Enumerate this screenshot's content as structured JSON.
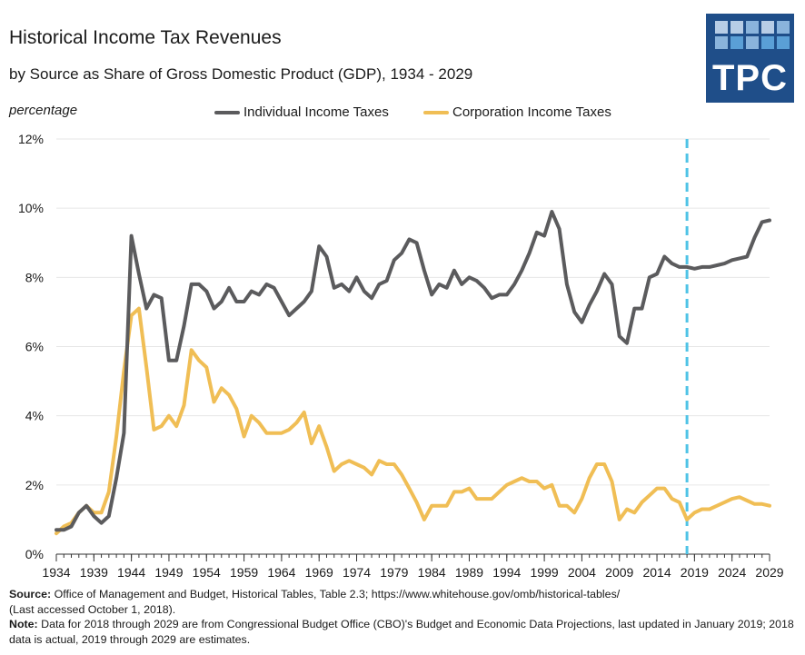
{
  "header": {
    "title": "Historical Income Tax Revenues",
    "subtitle": "by Source as Share of Gross Domestic Product (GDP), 1934 - 2029",
    "unit_label": "percentage"
  },
  "logo": {
    "text": "TPC",
    "bg_color": "#1f4e89",
    "cell_colors": [
      "#b7cde6",
      "#8ab4dc",
      "#5a9fd6"
    ]
  },
  "colors": {
    "individual": "#5b5b5d",
    "corporate": "#f0be55",
    "projection_line": "#4fc3e6",
    "grid": "#e6e6e6"
  },
  "chart_data": {
    "type": "line",
    "xlabel": "",
    "ylabel": "percentage",
    "xlim": [
      1934,
      2029
    ],
    "ylim": [
      0,
      12
    ],
    "grid": true,
    "legend_position": "top",
    "projection_start_year": 2018,
    "x_ticks": [
      1934,
      1939,
      1944,
      1949,
      1954,
      1959,
      1964,
      1969,
      1974,
      1979,
      1984,
      1989,
      1994,
      1999,
      2004,
      2009,
      2014,
      2019,
      2024,
      2029
    ],
    "y_ticks": [
      "0%",
      "2%",
      "4%",
      "6%",
      "8%",
      "10%",
      "12%"
    ],
    "y_tick_values": [
      0,
      2,
      4,
      6,
      8,
      10,
      12
    ],
    "x": [
      1934,
      1935,
      1936,
      1937,
      1938,
      1939,
      1940,
      1941,
      1942,
      1943,
      1944,
      1945,
      1946,
      1947,
      1948,
      1949,
      1950,
      1951,
      1952,
      1953,
      1954,
      1955,
      1956,
      1957,
      1958,
      1959,
      1960,
      1961,
      1962,
      1963,
      1964,
      1965,
      1966,
      1967,
      1968,
      1969,
      1970,
      1971,
      1972,
      1973,
      1974,
      1975,
      1976,
      1977,
      1978,
      1979,
      1980,
      1981,
      1982,
      1983,
      1984,
      1985,
      1986,
      1987,
      1988,
      1989,
      1990,
      1991,
      1992,
      1993,
      1994,
      1995,
      1996,
      1997,
      1998,
      1999,
      2000,
      2001,
      2002,
      2003,
      2004,
      2005,
      2006,
      2007,
      2008,
      2009,
      2010,
      2011,
      2012,
      2013,
      2014,
      2015,
      2016,
      2017,
      2018,
      2019,
      2020,
      2021,
      2022,
      2023,
      2024,
      2025,
      2026,
      2027,
      2028,
      2029
    ],
    "series": [
      {
        "name": "Individual Income Taxes",
        "color": "#5b5b5d",
        "values": [
          0.7,
          0.7,
          0.8,
          1.2,
          1.4,
          1.1,
          0.9,
          1.1,
          2.2,
          3.5,
          9.2,
          8.1,
          7.1,
          7.5,
          7.4,
          5.6,
          5.6,
          6.6,
          7.8,
          7.8,
          7.6,
          7.1,
          7.3,
          7.7,
          7.3,
          7.3,
          7.6,
          7.5,
          7.8,
          7.7,
          7.3,
          6.9,
          7.1,
          7.3,
          7.6,
          8.9,
          8.6,
          7.7,
          7.8,
          7.6,
          8.0,
          7.6,
          7.4,
          7.8,
          7.9,
          8.5,
          8.7,
          9.1,
          9.0,
          8.2,
          7.5,
          7.8,
          7.7,
          8.2,
          7.8,
          8.0,
          7.9,
          7.7,
          7.4,
          7.5,
          7.5,
          7.8,
          8.2,
          8.7,
          9.3,
          9.2,
          9.9,
          9.4,
          7.8,
          7.0,
          6.7,
          7.2,
          7.6,
          8.1,
          7.8,
          6.3,
          6.1,
          7.1,
          7.1,
          8.0,
          8.1,
          8.6,
          8.4,
          8.3,
          8.3,
          8.25,
          8.3,
          8.3,
          8.35,
          8.4,
          8.5,
          8.55,
          8.6,
          9.15,
          9.6,
          9.65
        ]
      },
      {
        "name": "Corporation Income Taxes",
        "color": "#f0be55",
        "values": [
          0.6,
          0.8,
          0.9,
          1.2,
          1.4,
          1.2,
          1.2,
          1.8,
          3.4,
          5.3,
          6.9,
          7.1,
          5.4,
          3.6,
          3.7,
          4.0,
          3.7,
          4.3,
          5.9,
          5.6,
          5.4,
          4.4,
          4.8,
          4.6,
          4.2,
          3.4,
          4.0,
          3.8,
          3.5,
          3.5,
          3.5,
          3.6,
          3.8,
          4.1,
          3.2,
          3.7,
          3.1,
          2.4,
          2.6,
          2.7,
          2.6,
          2.5,
          2.3,
          2.7,
          2.6,
          2.6,
          2.3,
          1.9,
          1.5,
          1.0,
          1.4,
          1.4,
          1.4,
          1.8,
          1.8,
          1.9,
          1.6,
          1.6,
          1.6,
          1.8,
          2.0,
          2.1,
          2.2,
          2.1,
          2.1,
          1.9,
          2.0,
          1.4,
          1.4,
          1.2,
          1.6,
          2.2,
          2.6,
          2.6,
          2.1,
          1.0,
          1.3,
          1.2,
          1.5,
          1.7,
          1.9,
          1.9,
          1.6,
          1.5,
          1.0,
          1.2,
          1.3,
          1.3,
          1.4,
          1.5,
          1.6,
          1.65,
          1.55,
          1.45,
          1.45,
          1.4
        ]
      }
    ]
  },
  "footer": {
    "source_label": "Source:",
    "source_text": " Office of Management and Budget, Historical Tables, Table 2.3; https://www.whitehouse.gov/omb/historical-tables/",
    "accessed_text": "(Last accessed October 1, 2018).",
    "note_label": "Note:",
    "note_text": " Data for 2018 through 2029 are from Congressional Budget Office (CBO)'s Budget and Economic Data Projections, last updated in January 2019; 2018 data is actual, 2019 through 2029 are estimates."
  }
}
